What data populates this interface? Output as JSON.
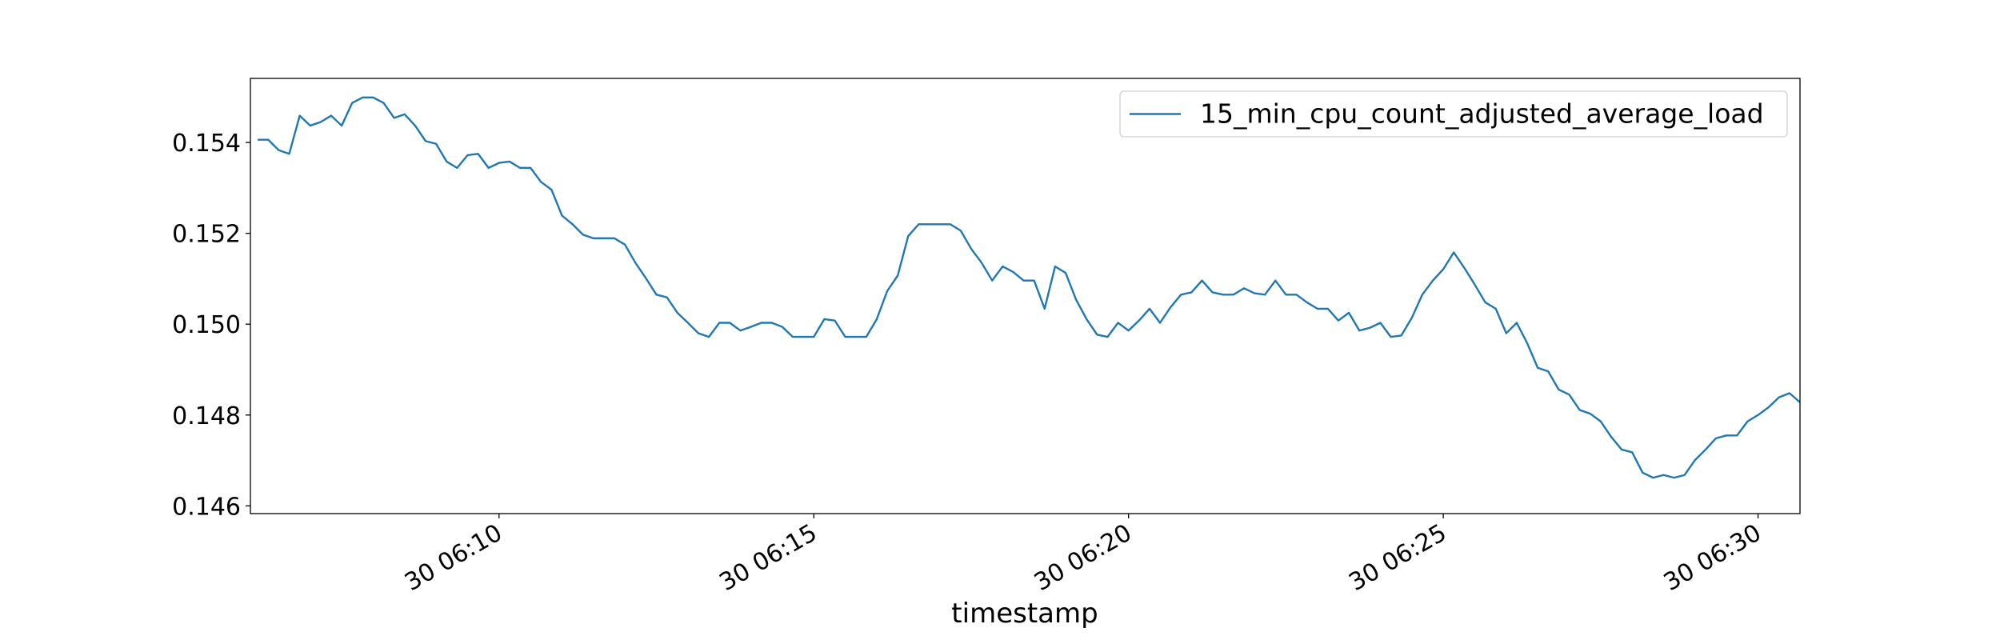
{
  "chart_data": {
    "type": "line",
    "xlabel": "timestamp",
    "legend": "upper right",
    "grid": false,
    "x": [
      "30 06:06:10",
      "30 06:06:20",
      "30 06:06:30",
      "30 06:06:40",
      "30 06:06:50",
      "30 06:07:00",
      "30 06:07:10",
      "30 06:07:20",
      "30 06:07:30",
      "30 06:07:40",
      "30 06:07:50",
      "30 06:08:00",
      "30 06:08:10",
      "30 06:08:20",
      "30 06:08:30",
      "30 06:08:40",
      "30 06:08:50",
      "30 06:09:00",
      "30 06:09:10",
      "30 06:09:20",
      "30 06:09:30",
      "30 06:09:40",
      "30 06:09:50",
      "30 06:10:00",
      "30 06:10:10",
      "30 06:10:20",
      "30 06:10:30",
      "30 06:10:40",
      "30 06:10:50",
      "30 06:11:00",
      "30 06:11:10",
      "30 06:11:20",
      "30 06:11:30",
      "30 06:11:40",
      "30 06:11:50",
      "30 06:12:00",
      "30 06:12:10",
      "30 06:12:20",
      "30 06:12:30",
      "30 06:12:40",
      "30 06:12:50",
      "30 06:13:00",
      "30 06:13:10",
      "30 06:13:20",
      "30 06:13:30",
      "30 06:13:40",
      "30 06:13:50",
      "30 06:14:00",
      "30 06:14:10",
      "30 06:14:20",
      "30 06:14:30",
      "30 06:14:40",
      "30 06:14:50",
      "30 06:15:00",
      "30 06:15:10",
      "30 06:15:20",
      "30 06:15:30",
      "30 06:15:40",
      "30 06:15:50",
      "30 06:16:00",
      "30 06:16:10",
      "30 06:16:20",
      "30 06:16:30",
      "30 06:16:40",
      "30 06:16:50",
      "30 06:17:00",
      "30 06:17:10",
      "30 06:17:20",
      "30 06:17:30",
      "30 06:17:40",
      "30 06:17:50",
      "30 06:18:00",
      "30 06:18:10",
      "30 06:18:20",
      "30 06:18:30",
      "30 06:18:40",
      "30 06:18:50",
      "30 06:19:00",
      "30 06:19:10",
      "30 06:19:20",
      "30 06:19:30",
      "30 06:19:40",
      "30 06:19:50",
      "30 06:20:00",
      "30 06:20:10",
      "30 06:20:20",
      "30 06:20:30",
      "30 06:20:40",
      "30 06:20:50",
      "30 06:21:00",
      "30 06:21:10",
      "30 06:21:20",
      "30 06:21:30",
      "30 06:21:40",
      "30 06:21:50",
      "30 06:22:00",
      "30 06:22:10",
      "30 06:22:20",
      "30 06:22:30",
      "30 06:22:40",
      "30 06:22:50",
      "30 06:23:00",
      "30 06:23:10",
      "30 06:23:20",
      "30 06:23:30",
      "30 06:23:40",
      "30 06:23:50",
      "30 06:24:00",
      "30 06:24:10",
      "30 06:24:20",
      "30 06:24:30",
      "30 06:24:40",
      "30 06:24:50",
      "30 06:25:00",
      "30 06:25:10",
      "30 06:25:20",
      "30 06:25:30",
      "30 06:25:40",
      "30 06:25:50",
      "30 06:26:00",
      "30 06:26:10",
      "30 06:26:20",
      "30 06:26:30",
      "30 06:26:40",
      "30 06:26:50",
      "30 06:27:00",
      "30 06:27:10",
      "30 06:27:20",
      "30 06:27:30",
      "30 06:27:40",
      "30 06:27:50",
      "30 06:28:00",
      "30 06:28:10",
      "30 06:28:20",
      "30 06:28:30",
      "30 06:28:40",
      "30 06:28:50",
      "30 06:29:00",
      "30 06:29:10",
      "30 06:29:20",
      "30 06:29:30",
      "30 06:29:40",
      "30 06:29:50",
      "30 06:30:00",
      "30 06:30:10",
      "30 06:30:20",
      "30 06:30:30",
      "30 06:30:40"
    ],
    "series": [
      {
        "name": "15_min_cpu_count_adjusted_average_load",
        "color": "#1f77b4",
        "values": [
          0.15406,
          0.15406,
          0.15383,
          0.15375,
          0.15459,
          0.15437,
          0.15445,
          0.15459,
          0.15437,
          0.15487,
          0.15499,
          0.15499,
          0.15487,
          0.15454,
          0.15462,
          0.15437,
          0.15403,
          0.15397,
          0.15358,
          0.15344,
          0.15372,
          0.15375,
          0.15344,
          0.15355,
          0.15358,
          0.15344,
          0.15344,
          0.15313,
          0.15296,
          0.15239,
          0.1522,
          0.15197,
          0.15189,
          0.15189,
          0.15189,
          0.15175,
          0.15135,
          0.15101,
          0.15065,
          0.15059,
          0.15025,
          0.15003,
          0.1498,
          0.14972,
          0.15003,
          0.15003,
          0.14986,
          0.14994,
          0.15003,
          0.15003,
          0.14994,
          0.14972,
          0.14972,
          0.14972,
          0.15011,
          0.15008,
          0.14972,
          0.14972,
          0.14972,
          0.15011,
          0.15073,
          0.15107,
          0.15194,
          0.1522,
          0.1522,
          0.1522,
          0.1522,
          0.15206,
          0.15166,
          0.15135,
          0.15096,
          0.15127,
          0.15115,
          0.15096,
          0.15096,
          0.15034,
          0.15127,
          0.15113,
          0.15054,
          0.15011,
          0.14977,
          0.14972,
          0.15003,
          0.14986,
          0.15008,
          0.15034,
          0.15003,
          0.15037,
          0.15065,
          0.1507,
          0.15096,
          0.1507,
          0.15065,
          0.15065,
          0.15079,
          0.15068,
          0.15065,
          0.15096,
          0.15065,
          0.15065,
          0.15048,
          0.15034,
          0.15034,
          0.15008,
          0.15025,
          0.14986,
          0.14992,
          0.15003,
          0.14972,
          0.14975,
          0.15014,
          0.15065,
          0.15096,
          0.15121,
          0.15158,
          0.15124,
          0.15087,
          0.15048,
          0.15034,
          0.1498,
          0.15003,
          0.14958,
          0.14904,
          0.14896,
          0.14856,
          0.14845,
          0.14811,
          0.14803,
          0.14786,
          0.14752,
          0.14724,
          0.14718,
          0.14673,
          0.14662,
          0.14668,
          0.14662,
          0.14668,
          0.14701,
          0.14724,
          0.14749,
          0.14755,
          0.14755,
          0.14786,
          0.148,
          0.14817,
          0.14839,
          0.14848,
          0.14828
        ]
      }
    ],
    "xlim": [
      "30 06:06:03",
      "30 06:30:40"
    ],
    "xticks": [
      {
        "value": "30 06:10:00",
        "label": "30 06:10"
      },
      {
        "value": "30 06:15:00",
        "label": "30 06:15"
      },
      {
        "value": "30 06:20:00",
        "label": "30 06:20"
      },
      {
        "value": "30 06:25:00",
        "label": "30 06:25"
      },
      {
        "value": "30 06:30:00",
        "label": "30 06:30"
      }
    ],
    "ylim": [
      0.14583,
      0.15541
    ],
    "yticks": [
      0.146,
      0.148,
      {
        "value": 0.15,
        "label": "0.150"
      },
      0.152,
      0.154
    ]
  }
}
